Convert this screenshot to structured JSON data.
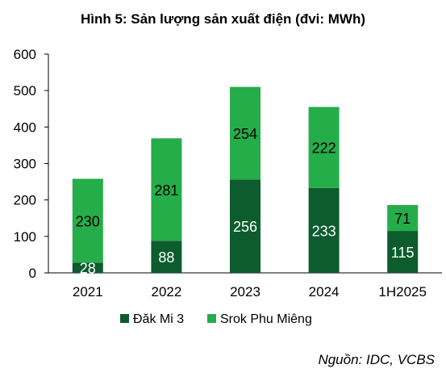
{
  "chart_data": {
    "type": "bar",
    "stacked": true,
    "title": "Hình 5: Sản lượng sản xuất điện (đvi: MWh)",
    "xlabel": "",
    "ylabel": "",
    "categories": [
      "2021",
      "2022",
      "2023",
      "2024",
      "1H2025"
    ],
    "series": [
      {
        "name": "Đăk Mi 3",
        "color": "#0d5c2e",
        "label_color": "#ffffff",
        "values": [
          28,
          88,
          256,
          233,
          115
        ]
      },
      {
        "name": "Srok Phu Miêng",
        "color": "#25ad4a",
        "label_color": "#000000",
        "values": [
          230,
          281,
          254,
          222,
          71
        ]
      }
    ],
    "ylim": [
      0,
      600
    ],
    "yticks": [
      0,
      100,
      200,
      300,
      400,
      500,
      600
    ],
    "grid": false,
    "legend_position": "bottom"
  },
  "source": "Nguồn: IDC, VCBS"
}
